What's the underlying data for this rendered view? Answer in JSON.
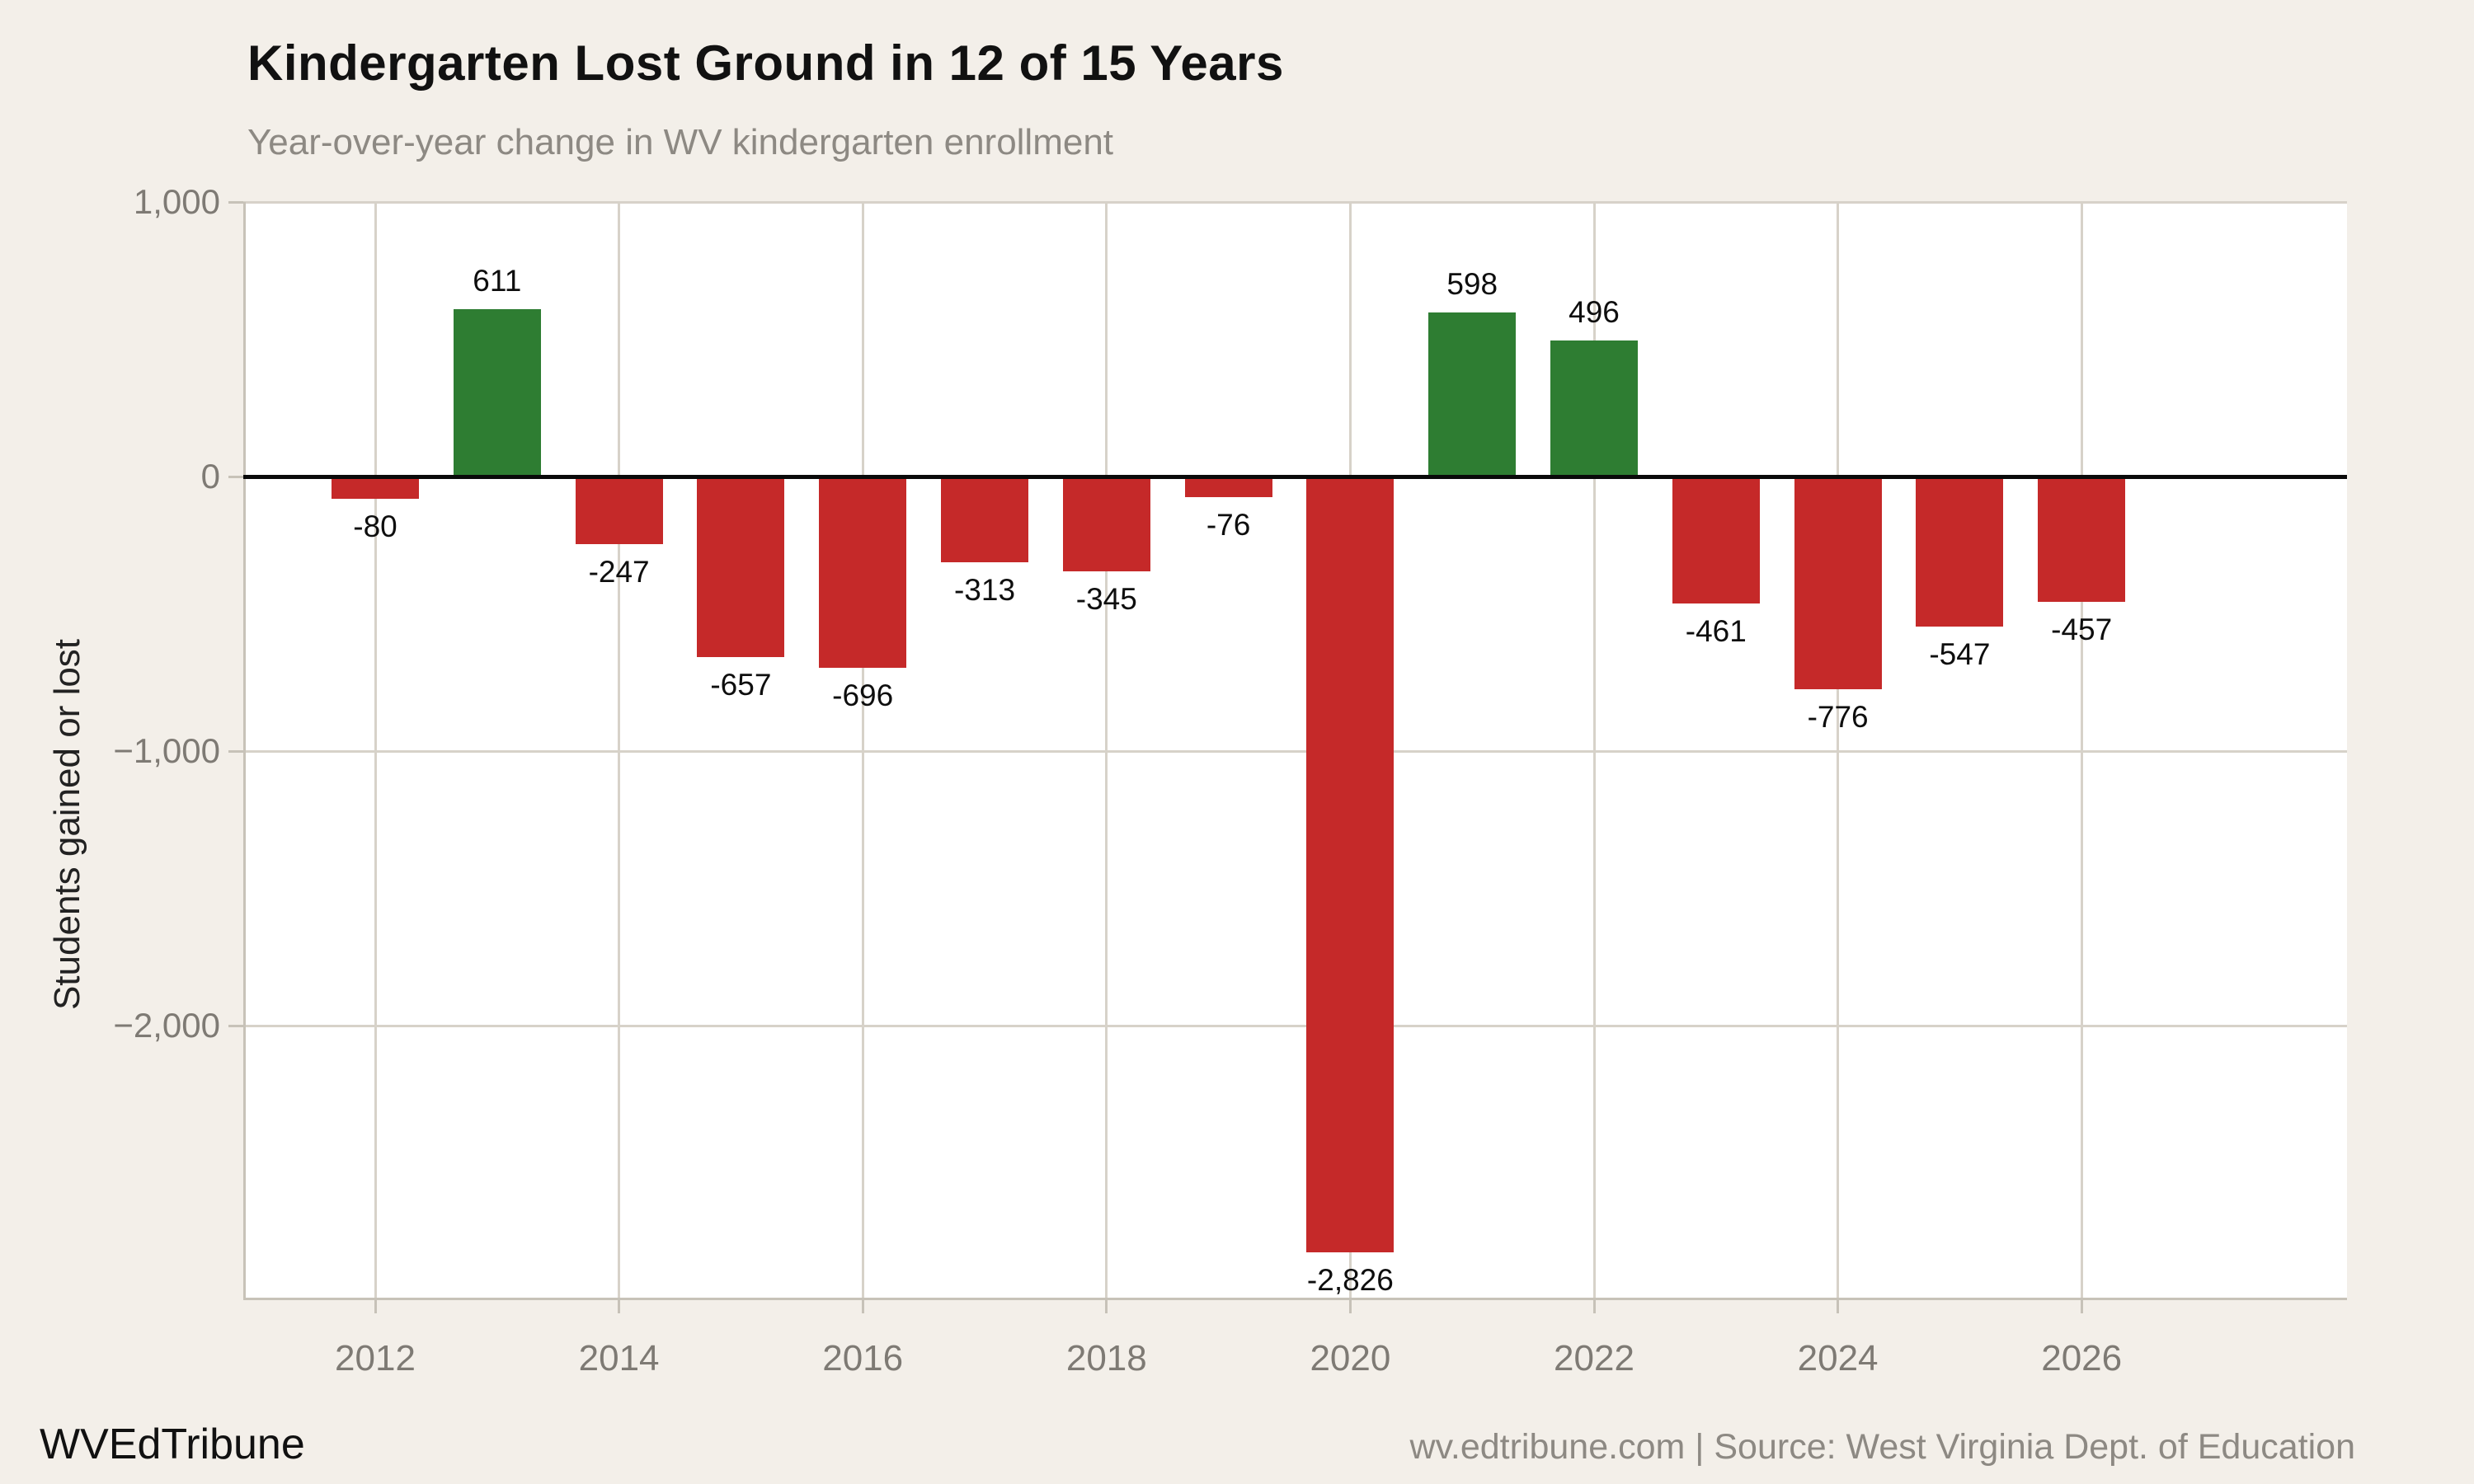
{
  "header": {
    "title": "Kindergarten Lost Ground in 12 of 15 Years",
    "subtitle": "Year-over-year change in WV kindergarten enrollment"
  },
  "chart_data": {
    "type": "bar",
    "title": "Kindergarten Lost Ground in 12 of 15 Years",
    "subtitle": "Year-over-year change in WV kindergarten enrollment",
    "ylabel": "Students gained or lost",
    "xlabel": "",
    "categories": [
      "2012",
      "2013",
      "2014",
      "2015",
      "2016",
      "2017",
      "2018",
      "2019",
      "2020",
      "2021",
      "2022",
      "2023",
      "2024",
      "2025",
      "2026"
    ],
    "values": [
      -80,
      611,
      -247,
      -657,
      -696,
      -313,
      -345,
      -76,
      -2826,
      598,
      496,
      -461,
      -776,
      -547,
      -457
    ],
    "value_labels": [
      "-80",
      "611",
      "-247",
      "-657",
      "-696",
      "-313",
      "-345",
      "-76",
      "-2,826",
      "598",
      "496",
      "-461",
      "-776",
      "-547",
      "-457"
    ],
    "ylim": [
      -3000,
      1000
    ],
    "ytick_values": [
      1000,
      0,
      -1000,
      -2000
    ],
    "ytick_labels": [
      "1,000",
      "0",
      "−1,000",
      "−2,000"
    ],
    "xtick_labels": [
      "2012",
      "2014",
      "2016",
      "2018",
      "2020",
      "2022",
      "2024",
      "2026"
    ],
    "grid": "on",
    "legend": "none",
    "colors": {
      "positive": "#2e7d32",
      "negative": "#c52929",
      "zero_line": "#0a0a0a",
      "gridline": "#d7d2c9",
      "background": "#f3efe9",
      "plot_background": "#ffffff"
    }
  },
  "footer": {
    "brand": "WVEdTribune",
    "credit": "wv.edtribune.com | Source: West Virginia Dept. of Education"
  }
}
